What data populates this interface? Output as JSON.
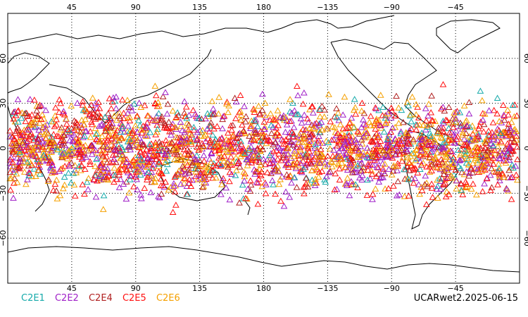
{
  "map": {
    "lon_ticks": [
      "45",
      "90",
      "135",
      "180",
      "−135",
      "−90",
      "−45"
    ],
    "lat_ticks": [
      "60",
      "30",
      "0",
      "−30",
      "−60"
    ],
    "lon_range": [
      0,
      360
    ],
    "lat_range": [
      -90,
      90
    ],
    "grid": "dotted",
    "marker": "open triangle",
    "occultation_lat_range": [
      -45,
      45
    ]
  },
  "legend": [
    {
      "label": "C2E1",
      "color": "#16aaaa"
    },
    {
      "label": "C2E2",
      "color": "#a020c8"
    },
    {
      "label": "C2E4",
      "color": "#b02020"
    },
    {
      "label": "C2E5",
      "color": "#ff1010"
    },
    {
      "label": "C2E6",
      "color": "#f5a000"
    }
  ],
  "source_label": "UCARwet2.2025-06-15"
}
